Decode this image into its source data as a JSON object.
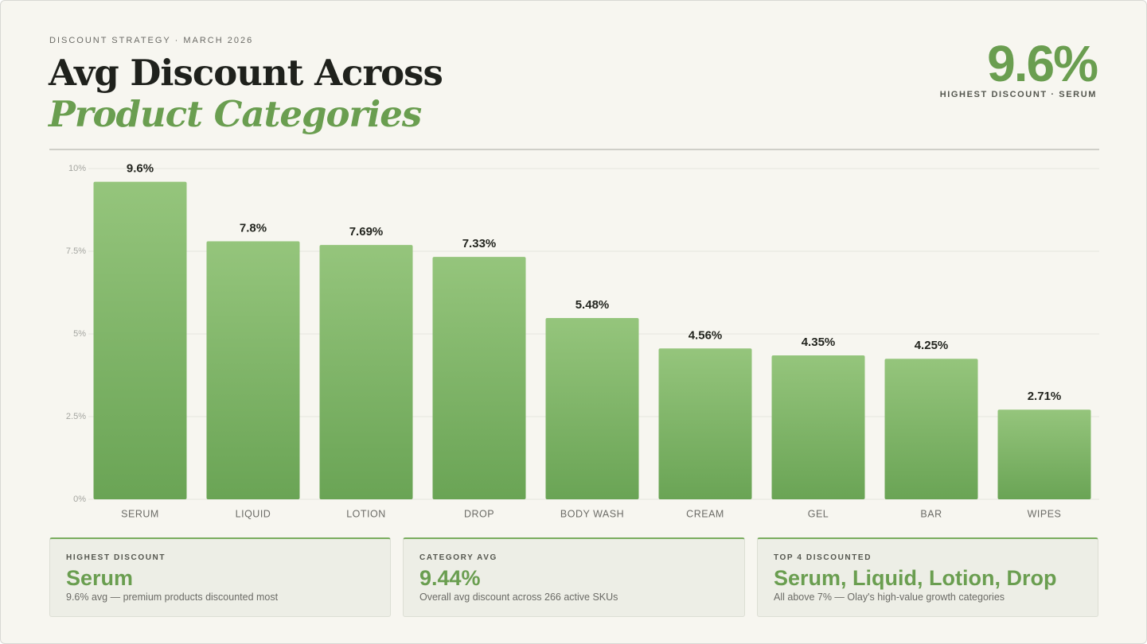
{
  "header": {
    "kicker": "DISCOUNT STRATEGY · MARCH 2026",
    "title_line1": "Avg Discount Across",
    "title_line2": "Product Categories",
    "kpi_value": "9.6%",
    "kpi_label": "HIGHEST DISCOUNT · SERUM"
  },
  "chart_data": {
    "type": "bar",
    "categories": [
      "SERUM",
      "LIQUID",
      "LOTION",
      "DROP",
      "BODY WASH",
      "CREAM",
      "GEL",
      "BAR",
      "WIPES"
    ],
    "values": [
      9.6,
      7.8,
      7.69,
      7.33,
      5.48,
      4.56,
      4.35,
      4.25,
      2.71
    ],
    "value_labels": [
      "9.6%",
      "7.8%",
      "7.69%",
      "7.33%",
      "5.48%",
      "4.56%",
      "4.35%",
      "4.25%",
      "2.71%"
    ],
    "colors": [
      "#95c57c",
      "#6aa455"
    ],
    "ylim": [
      0,
      10
    ],
    "yticks": [
      {
        "value": 0,
        "label": "0%"
      },
      {
        "value": 2.5,
        "label": "2.5%"
      },
      {
        "value": 5,
        "label": "5%"
      },
      {
        "value": 7.5,
        "label": "7.5%"
      },
      {
        "value": 10,
        "label": "10%"
      }
    ],
    "grid": true
  },
  "cards": [
    {
      "label": "HIGHEST DISCOUNT",
      "value": "Serum",
      "note": "9.6% avg — premium products discounted most"
    },
    {
      "label": "CATEGORY AVG",
      "value": "9.44%",
      "note": "Overall avg discount across 266 active SKUs"
    },
    {
      "label": "TOP 4 DISCOUNTED",
      "value": "Serum, Liquid, Lotion, Drop",
      "note": "All above 7% — Olay's high-value growth categories"
    }
  ]
}
